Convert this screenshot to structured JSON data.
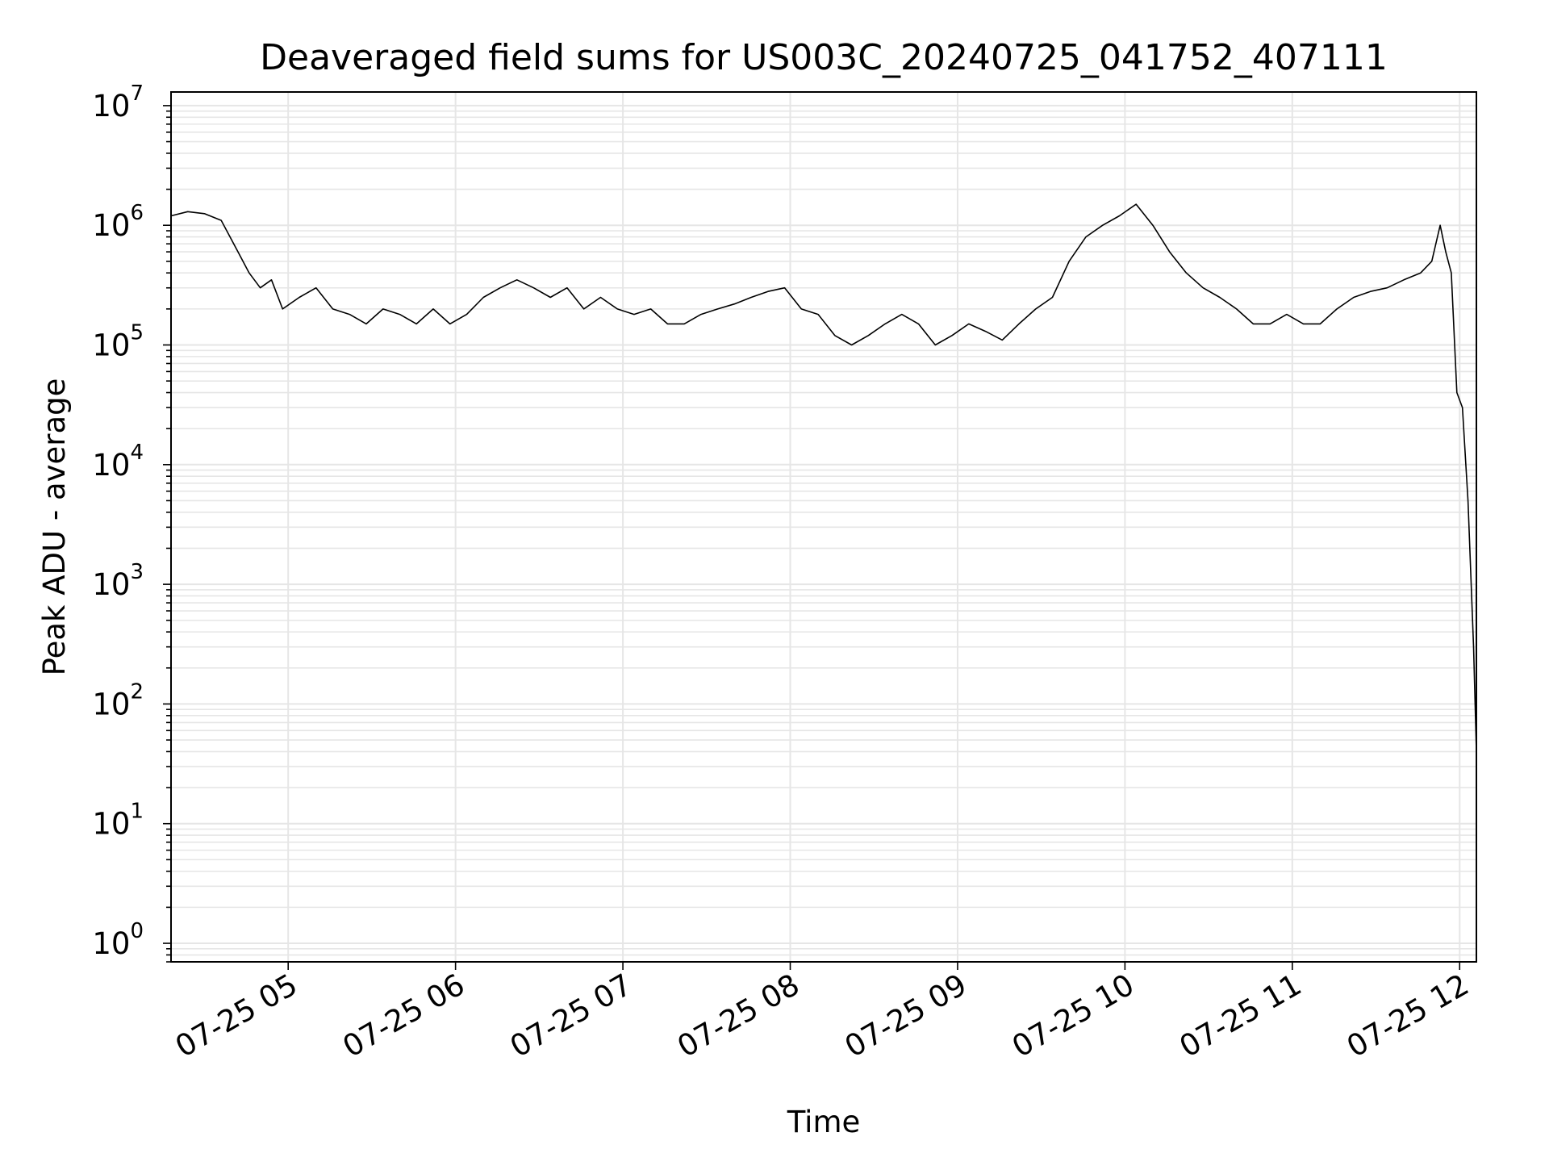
{
  "chart_data": {
    "type": "line",
    "title": "Deaveraged field sums for US003C_20240725_041752_407111",
    "xlabel": "Time",
    "ylabel": "Peak ADU - average",
    "yscale": "log",
    "ylim": [
      0.7,
      13000000
    ],
    "xlim": [
      "2024-07-25 04:18",
      "2024-07-25 12:06"
    ],
    "grid": true,
    "grid_minor": true,
    "line_color": "#000000",
    "x_tick_dates": [
      "2024-07-25 05:00",
      "2024-07-25 06:00",
      "2024-07-25 07:00",
      "2024-07-25 08:00",
      "2024-07-25 09:00",
      "2024-07-25 10:00",
      "2024-07-25 11:00",
      "2024-07-25 12:00"
    ],
    "x_tick_labels": [
      "07-25 05",
      "07-25 06",
      "07-25 07",
      "07-25 08",
      "07-25 09",
      "07-25 10",
      "07-25 11",
      "07-25 12"
    ],
    "y_ticks": [
      {
        "base": "10",
        "exp": "0"
      },
      {
        "base": "10",
        "exp": "1"
      },
      {
        "base": "10",
        "exp": "2"
      },
      {
        "base": "10",
        "exp": "3"
      },
      {
        "base": "10",
        "exp": "4"
      },
      {
        "base": "10",
        "exp": "5"
      },
      {
        "base": "10",
        "exp": "6"
      },
      {
        "base": "10",
        "exp": "7"
      }
    ],
    "series": [
      {
        "x": [
          "2024-07-25 04:18",
          "2024-07-25 04:24",
          "2024-07-25 04:30",
          "2024-07-25 04:36",
          "2024-07-25 04:42",
          "2024-07-25 04:46",
          "2024-07-25 04:50",
          "2024-07-25 04:54",
          "2024-07-25 04:58",
          "2024-07-25 05:04",
          "2024-07-25 05:10",
          "2024-07-25 05:16",
          "2024-07-25 05:22",
          "2024-07-25 05:28",
          "2024-07-25 05:34",
          "2024-07-25 05:40",
          "2024-07-25 05:46",
          "2024-07-25 05:52",
          "2024-07-25 05:58",
          "2024-07-25 06:04",
          "2024-07-25 06:10",
          "2024-07-25 06:16",
          "2024-07-25 06:22",
          "2024-07-25 06:28",
          "2024-07-25 06:34",
          "2024-07-25 06:40",
          "2024-07-25 06:46",
          "2024-07-25 06:52",
          "2024-07-25 06:58",
          "2024-07-25 07:04",
          "2024-07-25 07:10",
          "2024-07-25 07:16",
          "2024-07-25 07:22",
          "2024-07-25 07:28",
          "2024-07-25 07:34",
          "2024-07-25 07:40",
          "2024-07-25 07:46",
          "2024-07-25 07:52",
          "2024-07-25 07:58",
          "2024-07-25 08:04",
          "2024-07-25 08:10",
          "2024-07-25 08:16",
          "2024-07-25 08:22",
          "2024-07-25 08:28",
          "2024-07-25 08:34",
          "2024-07-25 08:40",
          "2024-07-25 08:46",
          "2024-07-25 08:52",
          "2024-07-25 08:58",
          "2024-07-25 09:04",
          "2024-07-25 09:10",
          "2024-07-25 09:16",
          "2024-07-25 09:22",
          "2024-07-25 09:28",
          "2024-07-25 09:34",
          "2024-07-25 09:40",
          "2024-07-25 09:46",
          "2024-07-25 09:52",
          "2024-07-25 09:58",
          "2024-07-25 10:04",
          "2024-07-25 10:10",
          "2024-07-25 10:16",
          "2024-07-25 10:22",
          "2024-07-25 10:28",
          "2024-07-25 10:34",
          "2024-07-25 10:40",
          "2024-07-25 10:46",
          "2024-07-25 10:52",
          "2024-07-25 10:58",
          "2024-07-25 11:04",
          "2024-07-25 11:10",
          "2024-07-25 11:16",
          "2024-07-25 11:22",
          "2024-07-25 11:28",
          "2024-07-25 11:34",
          "2024-07-25 11:40",
          "2024-07-25 11:46",
          "2024-07-25 11:50",
          "2024-07-25 11:53",
          "2024-07-25 11:55",
          "2024-07-25 11:57",
          "2024-07-25 11:59",
          "2024-07-25 12:01",
          "2024-07-25 12:03",
          "2024-07-25 12:05",
          "2024-07-25 12:06"
        ],
        "y": [
          1200000,
          1300000,
          1250000,
          1100000,
          600000,
          400000,
          300000,
          350000,
          200000,
          250000,
          300000,
          200000,
          180000,
          150000,
          200000,
          180000,
          150000,
          200000,
          150000,
          180000,
          250000,
          300000,
          350000,
          300000,
          250000,
          300000,
          200000,
          250000,
          200000,
          180000,
          200000,
          150000,
          150000,
          180000,
          200000,
          220000,
          250000,
          280000,
          300000,
          200000,
          180000,
          120000,
          100000,
          120000,
          150000,
          180000,
          150000,
          100000,
          120000,
          150000,
          130000,
          110000,
          150000,
          200000,
          250000,
          500000,
          800000,
          1000000,
          1200000,
          1500000,
          1000000,
          600000,
          400000,
          300000,
          250000,
          200000,
          150000,
          150000,
          180000,
          150000,
          150000,
          200000,
          250000,
          280000,
          300000,
          350000,
          400000,
          500000,
          1000000,
          600000,
          400000,
          40000,
          30000,
          5000,
          300,
          40
        ]
      }
    ]
  }
}
